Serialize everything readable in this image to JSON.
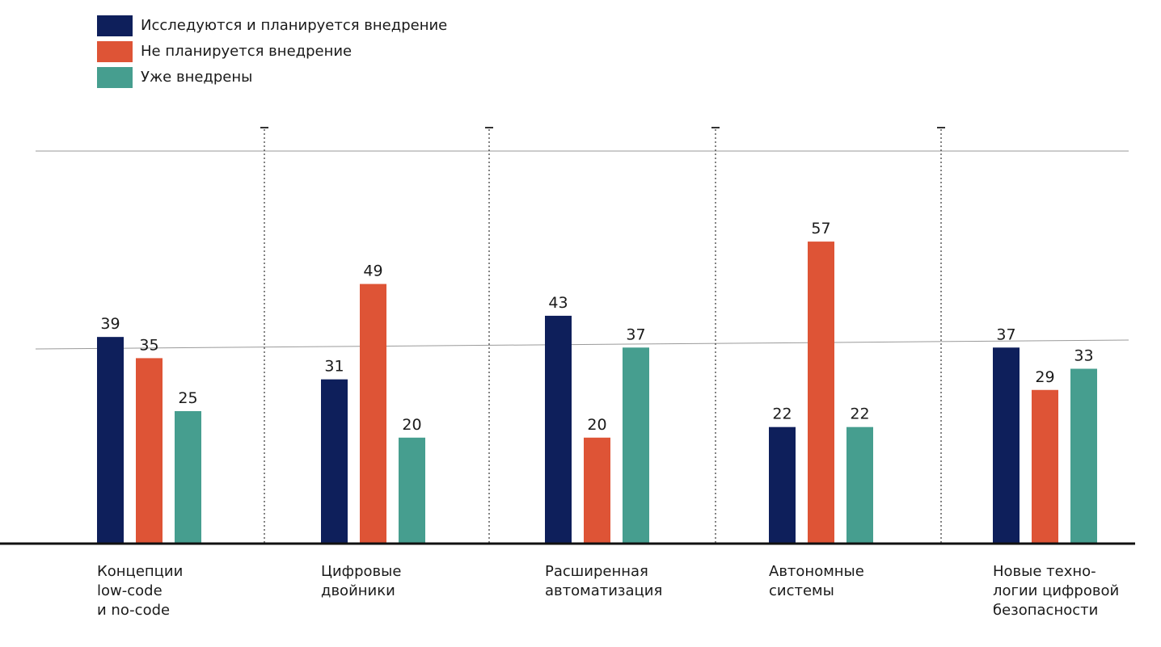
{
  "chart_data": {
    "type": "bar",
    "categories": [
      "Концепции\nlow-code\nи no-code",
      "Цифровые\nдвойники",
      "Расширенная\nавтоматизация",
      "Автономные\nсистемы",
      "Новые техно-\nлогии цифровой\nбезопасности"
    ],
    "series": [
      {
        "name": "Исследуются и планируется внедрение",
        "color": "#0e1f5b",
        "values": [
          39,
          31,
          43,
          22,
          37
        ]
      },
      {
        "name": "Не планируется внедрение",
        "color": "#de5436",
        "values": [
          35,
          49,
          20,
          57,
          29
        ]
      },
      {
        "name": "Уже внедрены",
        "color": "#469e8f",
        "values": [
          25,
          20,
          37,
          22,
          33
        ]
      }
    ],
    "ylim": [
      0,
      60
    ],
    "grid": true,
    "legend": "top-left"
  }
}
